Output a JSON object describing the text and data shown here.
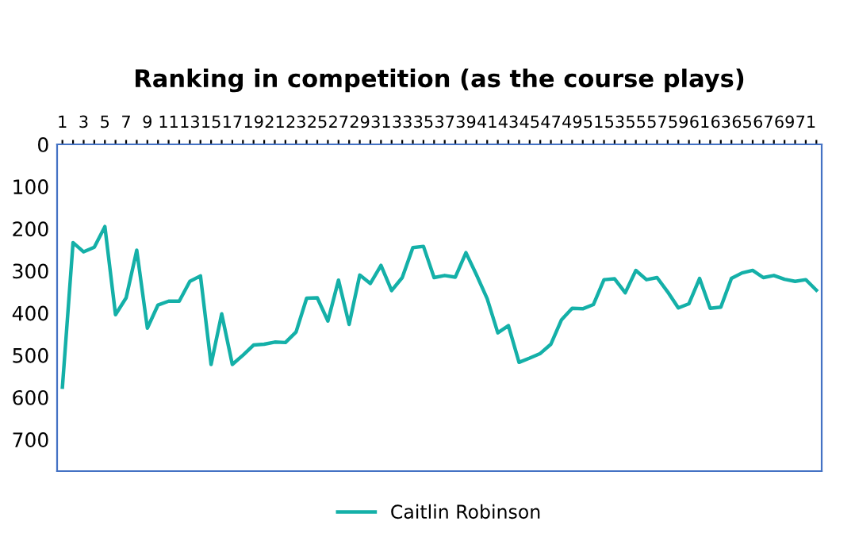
{
  "chart_data": {
    "type": "line",
    "title": "Ranking in competition (as the course plays)",
    "categories": [
      "1",
      null,
      "3",
      null,
      "5",
      null,
      "7",
      null,
      "9",
      null,
      "11",
      null,
      "13",
      null,
      "15",
      null,
      "17",
      null,
      "19",
      null,
      "21",
      null,
      "23",
      null,
      "25",
      null,
      "27",
      null,
      "29",
      null,
      "31",
      null,
      "33",
      null,
      "35",
      null,
      "37",
      null,
      "39",
      null,
      "41",
      null,
      "43",
      null,
      "45",
      null,
      "47",
      null,
      "49",
      null,
      "51",
      null,
      "53",
      null,
      "55",
      null,
      "57",
      null,
      "59",
      null,
      "61",
      null,
      "63",
      null,
      "65",
      null,
      "67",
      null,
      "69",
      null,
      "71",
      null
    ],
    "series": [
      {
        "name": "Caitlin Robinson",
        "color": "#14b0a8",
        "values": [
          576,
          233,
          255,
          244,
          195,
          404,
          364,
          251,
          436,
          381,
          372,
          372,
          325,
          312,
          522,
          402,
          522,
          500,
          476,
          474,
          469,
          470,
          445,
          365,
          364,
          419,
          322,
          427,
          310,
          330,
          287,
          347,
          316,
          245,
          242,
          316,
          311,
          315,
          257,
          310,
          366,
          447,
          430,
          517,
          507,
          496,
          474,
          416,
          389,
          390,
          380,
          321,
          319,
          352,
          299,
          321,
          316,
          350,
          388,
          378,
          318,
          389,
          386,
          318,
          305,
          299,
          316,
          311,
          320,
          325,
          321,
          346
        ]
      }
    ],
    "ylim": [
      775,
      0
    ],
    "yticks": [
      0,
      100,
      200,
      300,
      400,
      500,
      600,
      700
    ],
    "grid": false,
    "legend": "bottom",
    "marker": "none",
    "line_style": "solid"
  }
}
